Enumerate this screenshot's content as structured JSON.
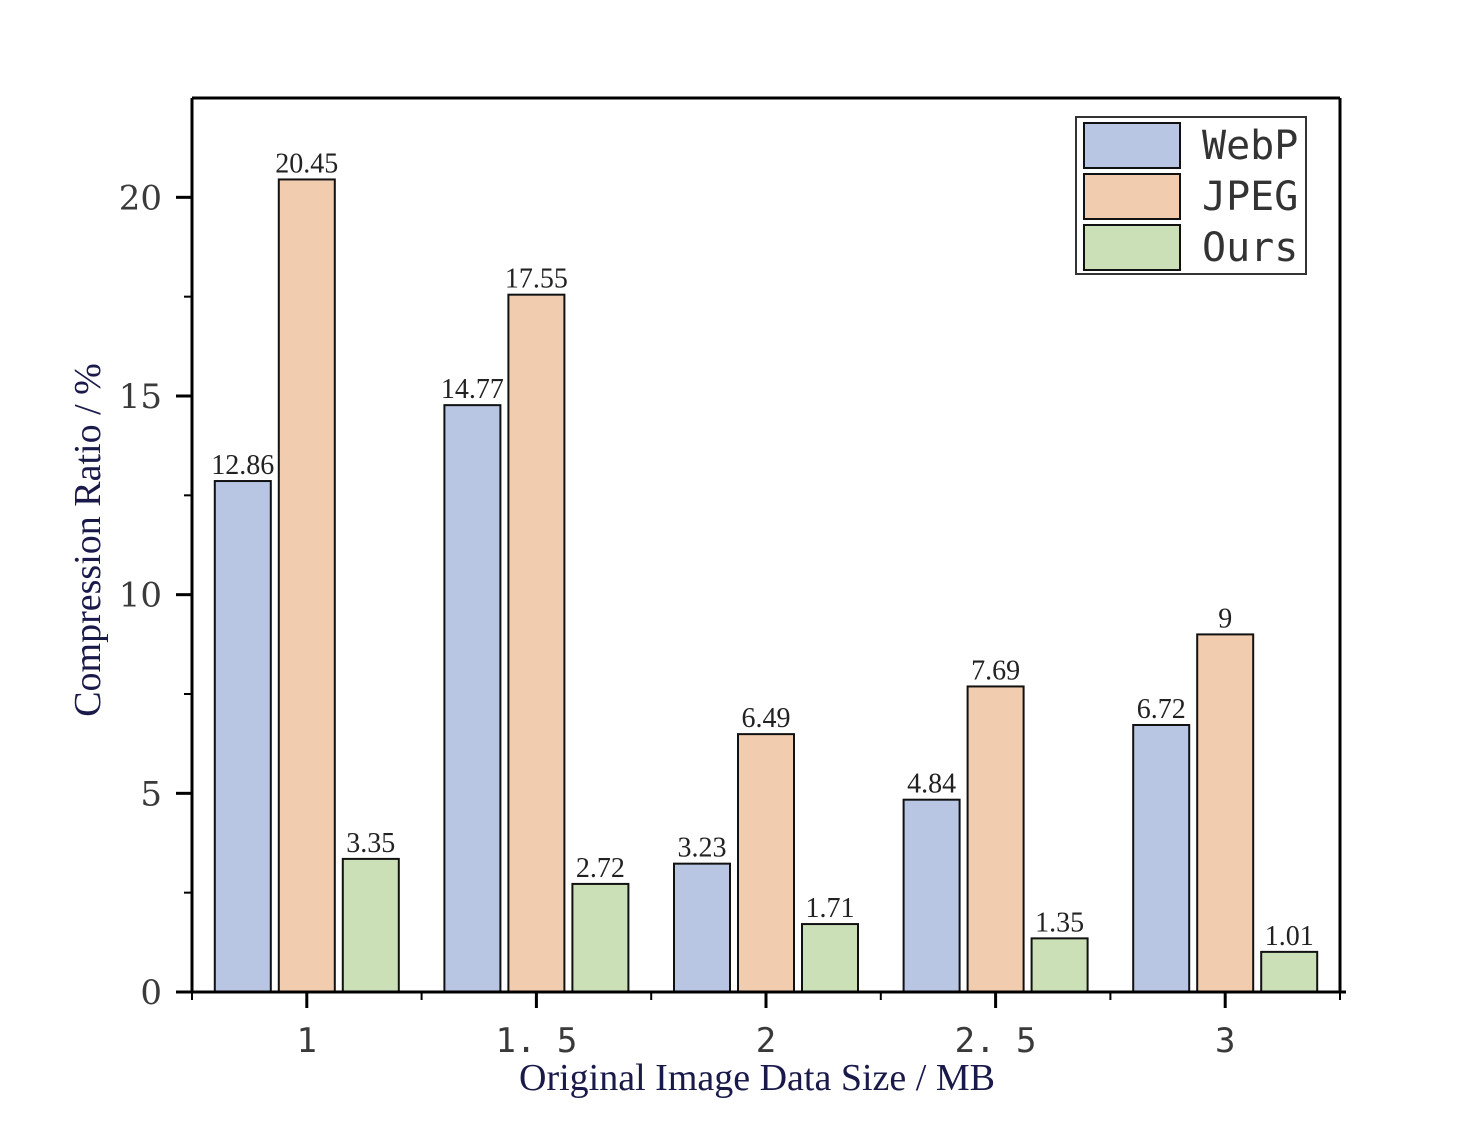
{
  "chart_data": {
    "type": "bar",
    "categories": [
      "1",
      "1. 5",
      "2",
      "2. 5",
      "3"
    ],
    "series": [
      {
        "name": "WebP",
        "values": [
          12.86,
          14.77,
          3.23,
          4.84,
          6.72
        ],
        "labels": [
          "12.86",
          "14.77",
          "3.23",
          "4.84",
          "6.72"
        ],
        "color": "#b8c5e3"
      },
      {
        "name": "JPEG",
        "values": [
          20.45,
          17.55,
          6.49,
          7.69,
          9
        ],
        "labels": [
          "20.45",
          "17.55",
          "6.49",
          "7.69",
          "9"
        ],
        "color": "#f2ccae"
      },
      {
        "name": "Ours",
        "values": [
          3.35,
          2.72,
          1.71,
          1.35,
          1.01
        ],
        "labels": [
          "3.35",
          "2.72",
          "1.71",
          "1.35",
          "1.01"
        ],
        "color": "#cce0b8"
      }
    ],
    "xlabel": "Original Image Data Size / MB",
    "ylabel": "Compression Ratio / %",
    "ylim": [
      0,
      22.5
    ],
    "yticks": [
      0,
      5,
      10,
      15,
      20
    ],
    "ytick_labels": [
      "0",
      "5",
      "10",
      "15",
      "20"
    ],
    "legend_position": "top-right",
    "grid": false
  }
}
